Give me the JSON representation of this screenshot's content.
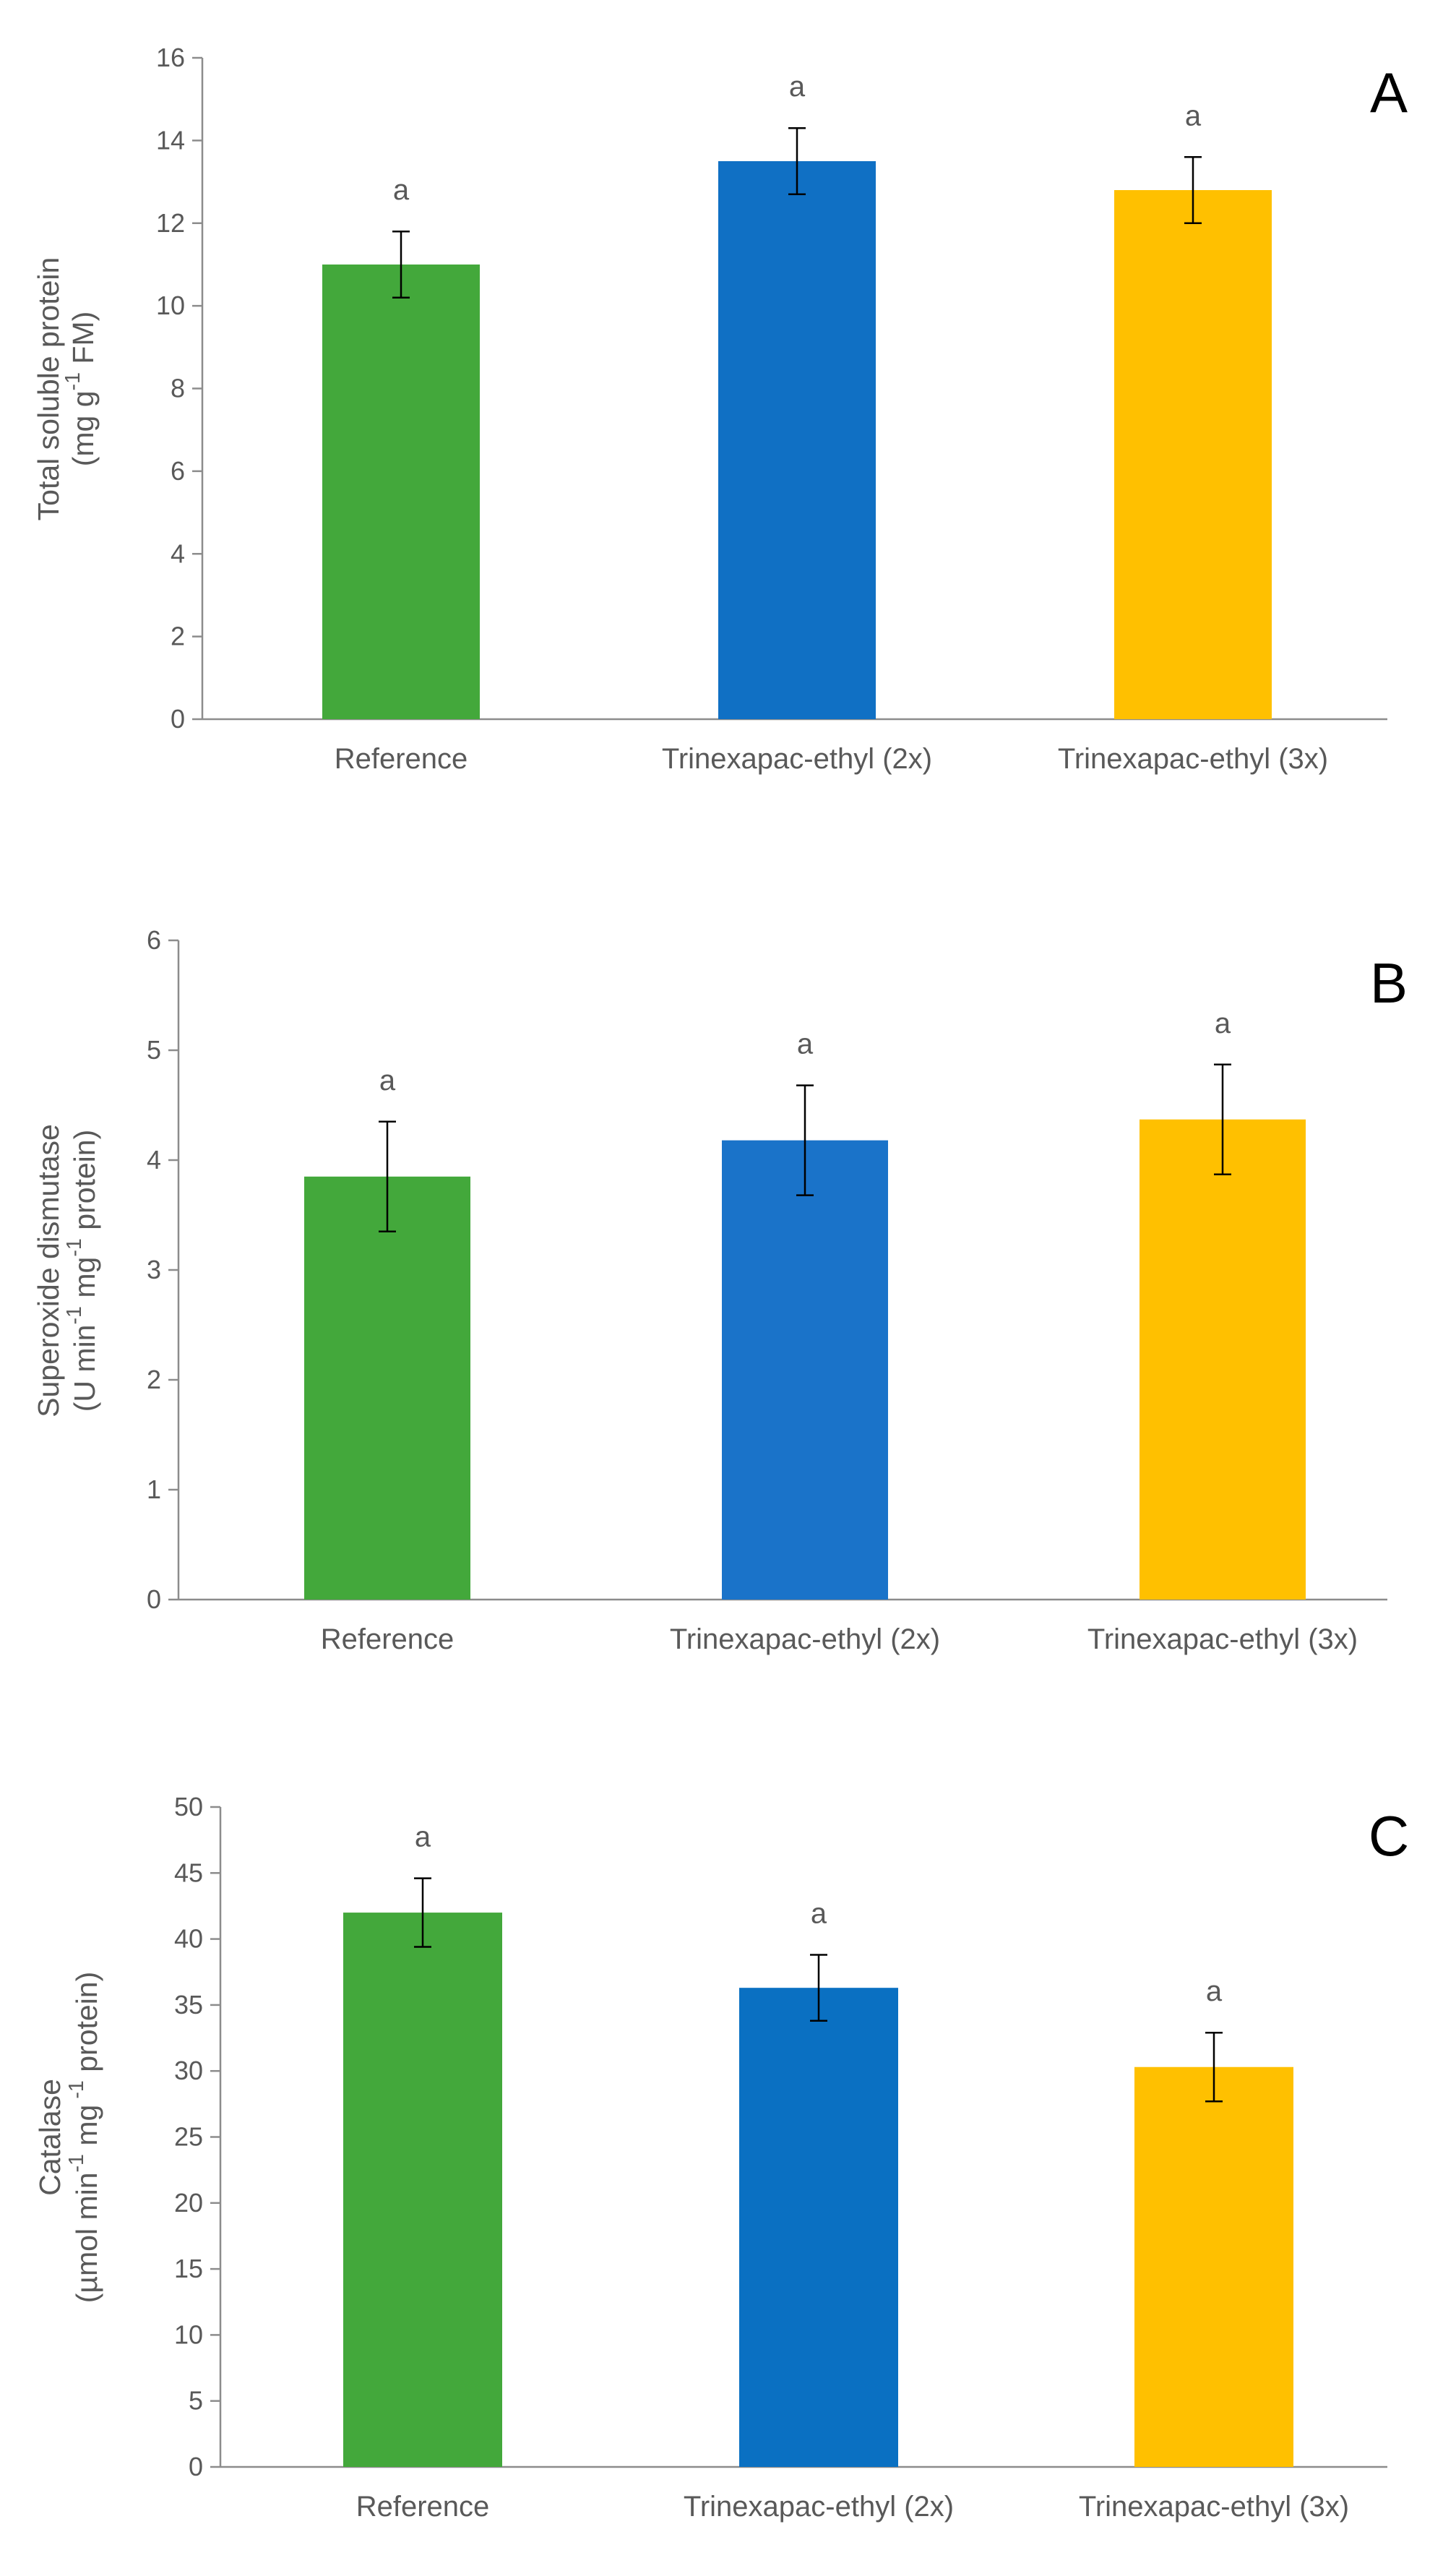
{
  "chart_data": [
    {
      "type": "bar",
      "panel": "A",
      "categories": [
        "Reference",
        "Trinexapac-ethyl (2x)",
        "Trinexapac-ethyl (3x)"
      ],
      "values": [
        11.0,
        13.5,
        12.8
      ],
      "errors": [
        0.8,
        0.8,
        0.8
      ],
      "significance": [
        "a",
        "a",
        "a"
      ],
      "colors": [
        "#43a83b",
        "#1070c4",
        "#ffc000"
      ],
      "ylabel_lines": [
        "Total soluble protein",
        "(mg g-1 FM)"
      ],
      "ylim": [
        0,
        16
      ],
      "yticks": [
        0,
        2,
        4,
        6,
        8,
        10,
        12,
        14,
        16
      ]
    },
    {
      "type": "bar",
      "panel": "B",
      "categories": [
        "Reference",
        "Trinexapac-ethyl (2x)",
        "Trinexapac-ethyl (3x)"
      ],
      "values": [
        3.85,
        4.18,
        4.37
      ],
      "errors": [
        0.5,
        0.5,
        0.5
      ],
      "significance": [
        "a",
        "a",
        "a"
      ],
      "colors": [
        "#43a83b",
        "#1a73c9",
        "#ffc000"
      ],
      "ylabel_lines": [
        "Superoxide dismutase",
        "(U min-1 mg-1 protein)"
      ],
      "ylim": [
        0,
        6
      ],
      "yticks": [
        0,
        1,
        2,
        3,
        4,
        5,
        6
      ]
    },
    {
      "type": "bar",
      "panel": "C",
      "categories": [
        "Reference",
        "Trinexapac-ethyl (2x)",
        "Trinexapac-ethyl (3x)"
      ],
      "values": [
        42.0,
        36.3,
        30.3
      ],
      "errors": [
        2.6,
        2.5,
        2.6
      ],
      "significance": [
        "a",
        "a",
        "a"
      ],
      "colors": [
        "#43a83b",
        "#0a70c2",
        "#ffc000"
      ],
      "ylabel_lines": [
        "Catalase",
        "(µmol min-1 mg -1 protein)"
      ],
      "ylim": [
        0,
        50
      ],
      "yticks": [
        0,
        5,
        10,
        15,
        20,
        25,
        30,
        35,
        40,
        45,
        50
      ]
    }
  ]
}
